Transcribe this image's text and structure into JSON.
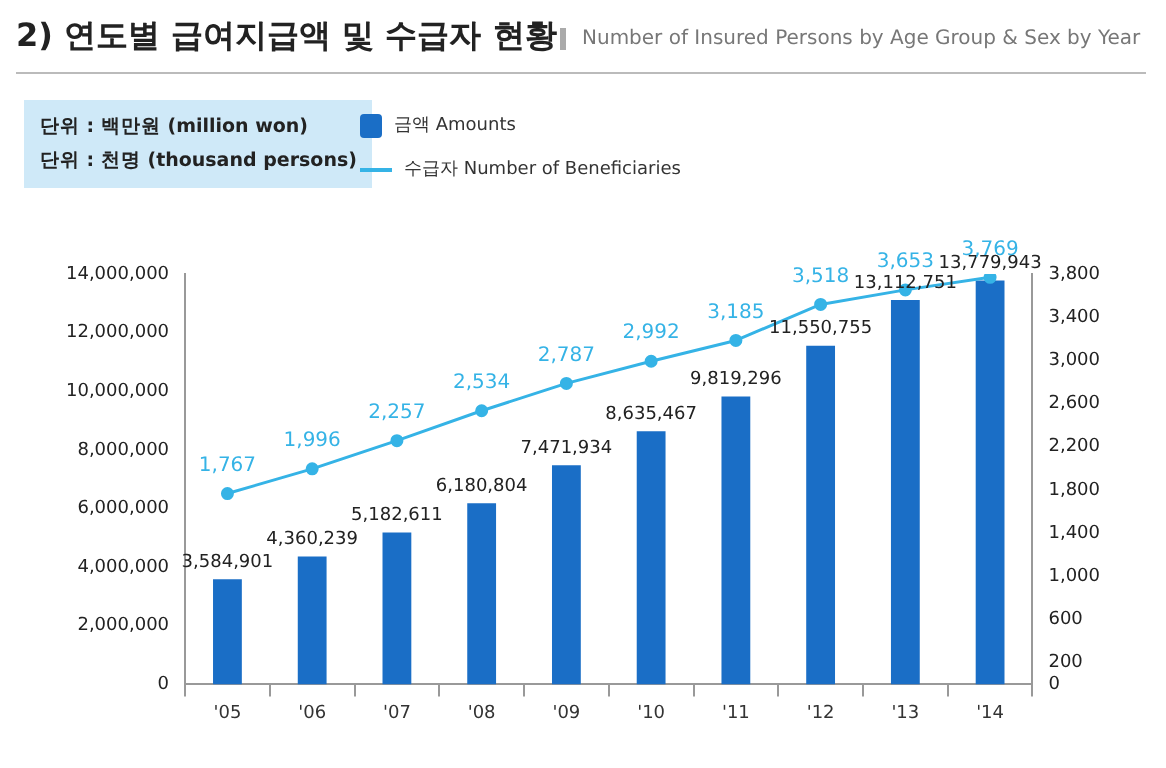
{
  "chart_data": {
    "type": "bar",
    "title": "2) 연도별 급여지급액 및 수급자 현황",
    "subtitle": "Number of Insured Persons by Age Group & Sex by Year",
    "annotations": [
      "단위 : 백만원 (million won)",
      "단위 : 천명 (thousand persons)"
    ],
    "categories": [
      "'05",
      "'06",
      "'07",
      "'08",
      "'09",
      "'10",
      "'11",
      "'12",
      "'13",
      "'14"
    ],
    "series": [
      {
        "name": "금액 Amounts",
        "color": "#1a6ec6",
        "values": [
          3584901,
          4360239,
          5182611,
          6180804,
          7471934,
          8635467,
          9819296,
          11550755,
          13112751,
          13779943
        ],
        "value_labels": [
          "3,584,901",
          "4,360,239",
          "5,182,611",
          "6,180,804",
          "7,471,934",
          "8,635,467",
          "9,819,296",
          "11,550,755",
          "13,112,751",
          "13,779,943"
        ]
      },
      {
        "name": "수급자 Number of Beneficiaries",
        "type": "line",
        "axis": "y2",
        "color": "#35b3e6",
        "values": [
          1767,
          1996,
          2257,
          2534,
          2787,
          2992,
          3185,
          3518,
          3653,
          3769
        ],
        "value_labels": [
          "1,767",
          "1,996",
          "2,257",
          "2,534",
          "2,787",
          "2,992",
          "3,185",
          "3,518",
          "3,653",
          "3,769"
        ]
      }
    ],
    "ylim": [
      0,
      14000000
    ],
    "yticks": [
      0,
      {
        "value": 2000000,
        "label": "2,000,000"
      },
      {
        "value": 4000000,
        "label": "4,000,000"
      },
      {
        "value": 6000000,
        "label": "6,000,000"
      },
      {
        "value": 8000000,
        "label": "8,000,000"
      },
      {
        "value": 10000000,
        "label": "10,000,000"
      },
      {
        "value": 12000000,
        "label": "12,000,000"
      },
      {
        "value": 14000000,
        "label": "14,000,000"
      }
    ],
    "y2lim": [
      0,
      3800
    ],
    "y2ticks": [
      0,
      200,
      600,
      {
        "value": 1000,
        "label": "1,000"
      },
      {
        "value": 1400,
        "label": "1,400"
      },
      {
        "value": 1800,
        "label": "1,800"
      },
      {
        "value": 2200,
        "label": "2,200"
      },
      {
        "value": 2600,
        "label": "2,600"
      },
      {
        "value": 3000,
        "label": "3,000"
      },
      {
        "value": 3400,
        "label": "3,400"
      },
      {
        "value": 3800,
        "label": "3,800"
      }
    ],
    "legend": "top left",
    "marker": "circle"
  }
}
